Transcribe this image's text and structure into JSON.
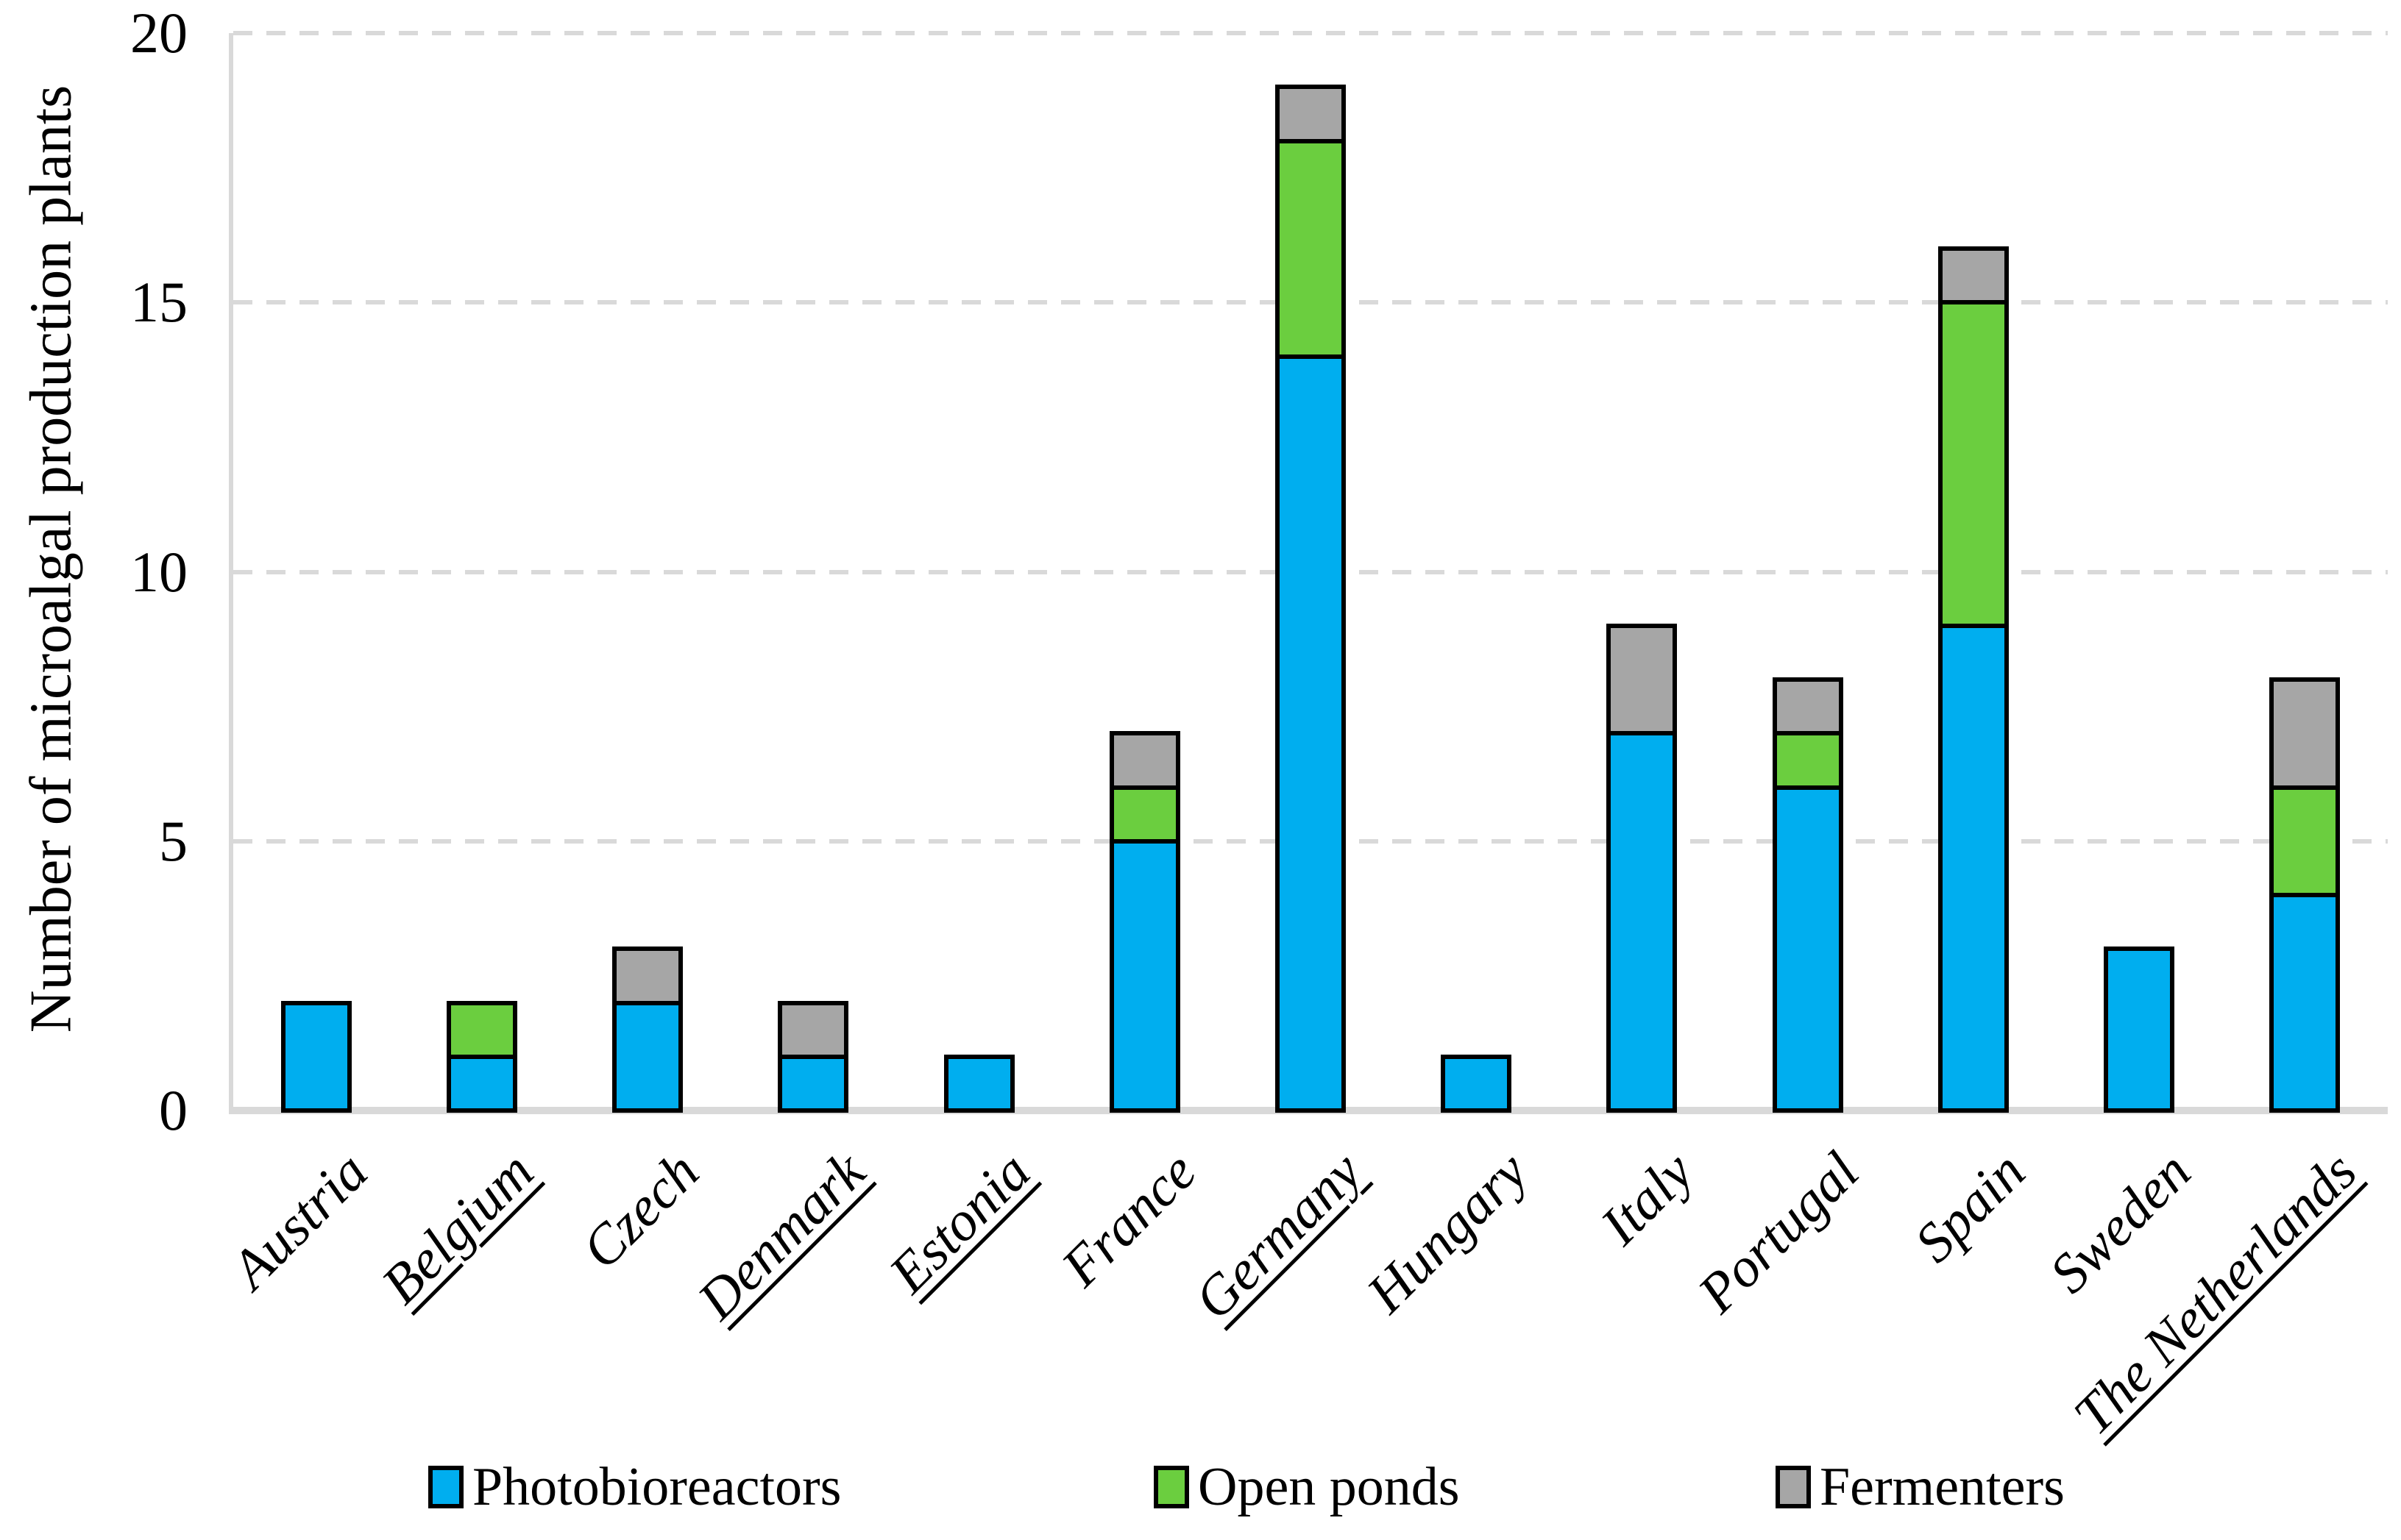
{
  "figure": {
    "background": "#ffffff"
  },
  "chart_data": {
    "type": "bar",
    "stacked": true,
    "title": "",
    "xlabel": "",
    "ylabel": "Number of microalgal production plants",
    "ylim": [
      0,
      20
    ],
    "yticks": [
      0,
      5,
      10,
      15,
      20
    ],
    "grid": "horizontal dashed",
    "gridline_color": "#d9d9d9",
    "axis_line_color": "#d9d9d9",
    "bar_border_color": "#000000",
    "legend_position": "bottom",
    "categories": [
      "Austria",
      "Belgium",
      "Czech",
      "Denmark",
      "Estonia",
      "France",
      "Germany",
      "Hungary",
      "Italy",
      "Portugal",
      "Spain",
      "Sweden",
      "The Netherlands"
    ],
    "underlined_categories": [
      "Belgium",
      "Denmark",
      "Estonia",
      "Germany",
      "The Netherlands"
    ],
    "series": [
      {
        "name": "Photobioreactors",
        "color": "#00AEEF",
        "values": [
          2,
          1,
          2,
          1,
          1,
          5,
          14,
          1,
          7,
          6,
          9,
          3,
          4
        ]
      },
      {
        "name": "Open ponds",
        "color": "#6BCE3F",
        "values": [
          0,
          1,
          0,
          0,
          0,
          1,
          4,
          0,
          0,
          1,
          6,
          0,
          2
        ]
      },
      {
        "name": "Fermenters",
        "color": "#A6A6A6",
        "values": [
          0,
          0,
          1,
          1,
          0,
          1,
          1,
          0,
          2,
          1,
          1,
          0,
          2
        ]
      }
    ],
    "totals": [
      2,
      2,
      3,
      2,
      1,
      7,
      19,
      1,
      9,
      8,
      16,
      3,
      8
    ]
  },
  "legend": {
    "items": [
      {
        "label": "Photobioreactors",
        "color": "#00AEEF"
      },
      {
        "label": "Open ponds",
        "color": "#6BCE3F"
      },
      {
        "label": "Fermenters",
        "color": "#A6A6A6"
      }
    ]
  }
}
